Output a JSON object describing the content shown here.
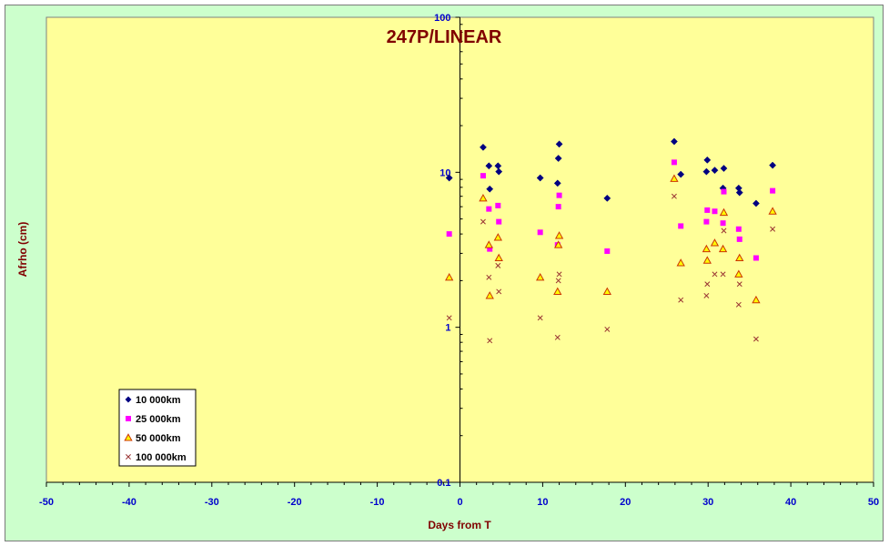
{
  "chart_data": {
    "type": "scatter",
    "title": "247P/LINEAR",
    "xlabel": "Days from T",
    "ylabel": "Afrho (cm)",
    "xlim": [
      -50,
      50
    ],
    "ylim": [
      0.1,
      100
    ],
    "y_scale": "log",
    "x_ticks": [
      -50,
      -40,
      -30,
      -20,
      -10,
      0,
      10,
      20,
      30,
      40,
      50
    ],
    "y_ticks": [
      0.1,
      1,
      10,
      100
    ],
    "legend_position": "bottom-left",
    "colors": {
      "plot_background": "#ffff99",
      "chart_background": "#ccffcc",
      "title": "#800000",
      "tick_labels": "#0000cc",
      "axis_titles": "#800000"
    },
    "series": [
      {
        "name": "10 000km",
        "marker": "diamond",
        "color": "#000080",
        "points": [
          [
            -1.3,
            9.2
          ],
          [
            2.8,
            14.5
          ],
          [
            3.5,
            11.0
          ],
          [
            3.6,
            7.8
          ],
          [
            4.6,
            11.0
          ],
          [
            4.7,
            10.1
          ],
          [
            9.7,
            9.2
          ],
          [
            11.8,
            8.5
          ],
          [
            11.9,
            12.3
          ],
          [
            12.0,
            15.2
          ],
          [
            17.8,
            6.8
          ],
          [
            25.9,
            15.8
          ],
          [
            26.7,
            9.7
          ],
          [
            29.8,
            10.1
          ],
          [
            29.9,
            12.0
          ],
          [
            30.8,
            10.3
          ],
          [
            31.8,
            7.9
          ],
          [
            31.9,
            10.6
          ],
          [
            33.7,
            7.9
          ],
          [
            33.8,
            7.4
          ],
          [
            35.8,
            6.3
          ],
          [
            37.8,
            11.1
          ]
        ]
      },
      {
        "name": "25 000km",
        "marker": "square",
        "color": "#ff00ff",
        "points": [
          [
            -1.3,
            4.0
          ],
          [
            2.8,
            9.5
          ],
          [
            3.5,
            5.8
          ],
          [
            3.6,
            3.2
          ],
          [
            4.6,
            6.1
          ],
          [
            4.7,
            4.8
          ],
          [
            9.7,
            4.1
          ],
          [
            11.8,
            3.4
          ],
          [
            11.9,
            6.0
          ],
          [
            12.0,
            7.1
          ],
          [
            17.8,
            3.1
          ],
          [
            25.9,
            11.6
          ],
          [
            26.7,
            4.5
          ],
          [
            29.8,
            4.8
          ],
          [
            29.9,
            5.7
          ],
          [
            30.8,
            5.6
          ],
          [
            31.8,
            4.7
          ],
          [
            31.9,
            7.5
          ],
          [
            33.7,
            4.3
          ],
          [
            33.8,
            3.7
          ],
          [
            35.8,
            2.8
          ],
          [
            37.8,
            7.6
          ]
        ]
      },
      {
        "name": "50 000km",
        "marker": "triangle",
        "color": "#cc3300",
        "points": [
          [
            -1.3,
            2.1
          ],
          [
            2.8,
            6.8
          ],
          [
            3.5,
            3.4
          ],
          [
            3.6,
            1.6
          ],
          [
            4.6,
            3.8
          ],
          [
            4.7,
            2.8
          ],
          [
            9.7,
            2.1
          ],
          [
            11.8,
            1.7
          ],
          [
            11.9,
            3.4
          ],
          [
            12.0,
            3.9
          ],
          [
            17.8,
            1.7
          ],
          [
            25.9,
            9.1
          ],
          [
            26.7,
            2.6
          ],
          [
            29.8,
            3.2
          ],
          [
            29.9,
            2.7
          ],
          [
            30.8,
            3.5
          ],
          [
            31.8,
            3.2
          ],
          [
            31.9,
            5.5
          ],
          [
            33.7,
            2.2
          ],
          [
            33.8,
            2.8
          ],
          [
            35.8,
            1.5
          ],
          [
            37.8,
            5.6
          ]
        ]
      },
      {
        "name": "100 000km",
        "marker": "x",
        "color": "#993333",
        "points": [
          [
            -1.3,
            1.15
          ],
          [
            2.8,
            4.8
          ],
          [
            3.5,
            2.1
          ],
          [
            3.6,
            0.82
          ],
          [
            4.6,
            2.5
          ],
          [
            4.7,
            1.7
          ],
          [
            9.7,
            1.15
          ],
          [
            11.8,
            0.86
          ],
          [
            11.9,
            2.0
          ],
          [
            12.0,
            2.2
          ],
          [
            17.8,
            0.97
          ],
          [
            25.9,
            7.0
          ],
          [
            26.7,
            1.5
          ],
          [
            29.8,
            1.6
          ],
          [
            29.9,
            1.9
          ],
          [
            30.8,
            2.2
          ],
          [
            31.8,
            2.2
          ],
          [
            31.9,
            4.2
          ],
          [
            33.7,
            1.4
          ],
          [
            33.8,
            1.9
          ],
          [
            35.8,
            0.84
          ],
          [
            37.8,
            4.3
          ]
        ]
      }
    ]
  }
}
